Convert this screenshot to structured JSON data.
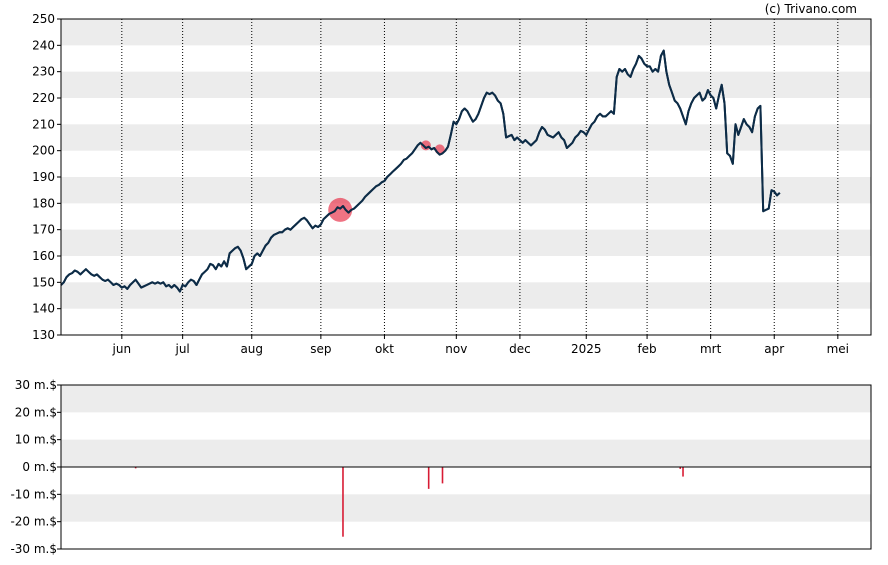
{
  "credit": "(c) Trivano.com",
  "colors": {
    "band": "#ececec",
    "line": "#0d2c47",
    "marker": "#e8384f",
    "volume": "#d81b34"
  },
  "chart_data": [
    {
      "type": "line",
      "name": "price",
      "grid": true,
      "ylim": [
        130,
        250
      ],
      "yticks": [
        "130",
        "140",
        "150",
        "160",
        "170",
        "180",
        "190",
        "200",
        "210",
        "220",
        "230",
        "240",
        "250"
      ],
      "month_labels": [
        "jun",
        "jul",
        "aug",
        "sep",
        "okt",
        "nov",
        "dec",
        "2025",
        "feb",
        "mrt",
        "apr",
        "mei"
      ],
      "month_ticks": [
        1,
        23,
        48,
        73,
        96,
        122,
        145,
        169,
        191,
        214,
        237,
        260
      ],
      "x_max": 272,
      "series": [
        {
          "points": [
            [
              -21,
              149
            ],
            [
              -20,
              150
            ],
            [
              -19,
              152
            ],
            [
              -18,
              153
            ],
            [
              -17,
              153.5
            ],
            [
              -16,
              154.5
            ],
            [
              -15,
              154
            ],
            [
              -14,
              153
            ],
            [
              -13,
              154
            ],
            [
              -12,
              155
            ],
            [
              -11,
              154
            ],
            [
              -10,
              153
            ],
            [
              -9,
              152.5
            ],
            [
              -8,
              153
            ],
            [
              -7,
              152
            ],
            [
              -6,
              151
            ],
            [
              -5,
              150.5
            ],
            [
              -4,
              151
            ],
            [
              -3,
              150
            ],
            [
              -2,
              149
            ],
            [
              -1,
              149.5
            ],
            [
              0,
              149
            ],
            [
              1,
              148
            ],
            [
              2,
              148.5
            ],
            [
              3,
              147.5
            ],
            [
              4,
              149
            ],
            [
              5,
              150
            ],
            [
              6,
              151
            ],
            [
              7,
              149.5
            ],
            [
              8,
              148
            ],
            [
              9,
              148.5
            ],
            [
              10,
              149
            ],
            [
              11,
              149.5
            ],
            [
              12,
              150
            ],
            [
              13,
              149.5
            ],
            [
              14,
              150
            ],
            [
              15,
              149.5
            ],
            [
              16,
              150
            ],
            [
              17,
              148.5
            ],
            [
              18,
              149
            ],
            [
              19,
              148
            ],
            [
              20,
              149
            ],
            [
              21,
              148
            ],
            [
              22,
              146.5
            ],
            [
              23,
              149
            ],
            [
              24,
              148.5
            ],
            [
              25,
              150
            ],
            [
              26,
              151
            ],
            [
              27,
              150.5
            ],
            [
              28,
              149
            ],
            [
              29,
              151
            ],
            [
              30,
              153
            ],
            [
              31,
              154
            ],
            [
              32,
              155
            ],
            [
              33,
              157
            ],
            [
              34,
              156.5
            ],
            [
              35,
              155
            ],
            [
              36,
              157
            ],
            [
              37,
              156
            ],
            [
              38,
              158
            ],
            [
              39,
              156
            ],
            [
              40,
              161
            ],
            [
              41,
              162
            ],
            [
              42,
              163
            ],
            [
              43,
              163.5
            ],
            [
              44,
              162
            ],
            [
              45,
              159
            ],
            [
              46,
              155
            ],
            [
              47,
              156
            ],
            [
              48,
              157
            ],
            [
              49,
              160
            ],
            [
              50,
              161
            ],
            [
              51,
              160
            ],
            [
              52,
              162
            ],
            [
              53,
              164
            ],
            [
              54,
              165
            ],
            [
              55,
              167
            ],
            [
              56,
              168
            ],
            [
              57,
              168.5
            ],
            [
              58,
              169
            ],
            [
              59,
              169
            ],
            [
              60,
              170
            ],
            [
              61,
              170.5
            ],
            [
              62,
              170
            ],
            [
              63,
              171
            ],
            [
              64,
              172
            ],
            [
              65,
              173
            ],
            [
              66,
              174
            ],
            [
              67,
              174.5
            ],
            [
              68,
              173.5
            ],
            [
              69,
              172
            ],
            [
              70,
              170.5
            ],
            [
              71,
              171.5
            ],
            [
              72,
              171
            ],
            [
              73,
              172
            ],
            [
              74,
              174
            ],
            [
              75,
              175
            ],
            [
              76,
              176
            ],
            [
              77,
              176.5
            ],
            [
              78,
              177
            ],
            [
              79,
              178.5
            ],
            [
              80,
              178
            ],
            [
              81,
              179
            ],
            [
              82,
              177.5
            ],
            [
              83,
              176.5
            ],
            [
              84,
              177.5
            ],
            [
              85,
              178
            ],
            [
              86,
              179
            ],
            [
              87,
              180
            ],
            [
              88,
              181
            ],
            [
              89,
              182.5
            ],
            [
              90,
              183.5
            ],
            [
              91,
              184.5
            ],
            [
              92,
              185.5
            ],
            [
              93,
              186.5
            ],
            [
              94,
              187
            ],
            [
              95,
              188
            ],
            [
              96,
              188.5
            ],
            [
              97,
              190
            ],
            [
              98,
              191
            ],
            [
              99,
              192
            ],
            [
              100,
              193
            ],
            [
              101,
              194
            ],
            [
              102,
              195
            ],
            [
              103,
              196.5
            ],
            [
              104,
              197
            ],
            [
              105,
              198
            ],
            [
              106,
              199
            ],
            [
              107,
              200.5
            ],
            [
              108,
              202
            ],
            [
              109,
              203
            ],
            [
              110,
              202
            ],
            [
              111,
              201
            ],
            [
              112,
              201.5
            ],
            [
              113,
              200.5
            ],
            [
              114,
              201
            ],
            [
              115,
              199.5
            ],
            [
              116,
              198.5
            ],
            [
              117,
              199
            ],
            [
              118,
              200
            ],
            [
              119,
              201.5
            ],
            [
              120,
              206
            ],
            [
              121,
              211
            ],
            [
              122,
              210
            ],
            [
              123,
              212
            ],
            [
              124,
              215
            ],
            [
              125,
              216
            ],
            [
              126,
              215
            ],
            [
              127,
              213
            ],
            [
              128,
              211
            ],
            [
              129,
              212
            ],
            [
              130,
              214
            ],
            [
              131,
              217
            ],
            [
              132,
              220
            ],
            [
              133,
              222
            ],
            [
              134,
              221.5
            ],
            [
              135,
              222
            ],
            [
              136,
              221
            ],
            [
              137,
              219
            ],
            [
              138,
              218
            ],
            [
              139,
              214
            ],
            [
              140,
              205
            ],
            [
              141,
              205.5
            ],
            [
              142,
              206
            ],
            [
              143,
              204
            ],
            [
              144,
              205
            ],
            [
              145,
              204
            ],
            [
              146,
              203
            ],
            [
              147,
              204
            ],
            [
              148,
              203
            ],
            [
              149,
              202
            ],
            [
              150,
              203
            ],
            [
              151,
              204
            ],
            [
              152,
              207
            ],
            [
              153,
              209
            ],
            [
              154,
              208
            ],
            [
              155,
              206
            ],
            [
              156,
              205.5
            ],
            [
              157,
              205
            ],
            [
              158,
              206
            ],
            [
              159,
              207
            ],
            [
              160,
              205
            ],
            [
              161,
              204
            ],
            [
              162,
              201
            ],
            [
              163,
              202
            ],
            [
              164,
              203
            ],
            [
              165,
              205
            ],
            [
              166,
              206
            ],
            [
              167,
              207.5
            ],
            [
              168,
              207
            ],
            [
              169,
              206
            ],
            [
              170,
              208
            ],
            [
              171,
              210
            ],
            [
              172,
              211
            ],
            [
              173,
              213
            ],
            [
              174,
              214
            ],
            [
              175,
              213
            ],
            [
              176,
              213
            ],
            [
              177,
              214
            ],
            [
              178,
              215
            ],
            [
              179,
              214
            ],
            [
              180,
              228
            ],
            [
              181,
              231
            ],
            [
              182,
              230
            ],
            [
              183,
              231
            ],
            [
              184,
              229
            ],
            [
              185,
              228
            ],
            [
              186,
              231
            ],
            [
              187,
              233
            ],
            [
              188,
              236
            ],
            [
              189,
              235
            ],
            [
              190,
              233
            ],
            [
              191,
              232
            ],
            [
              192,
              232
            ],
            [
              193,
              230
            ],
            [
              194,
              231
            ],
            [
              195,
              230
            ],
            [
              196,
              236
            ],
            [
              197,
              238
            ],
            [
              198,
              230
            ],
            [
              199,
              225
            ],
            [
              200,
              222
            ],
            [
              201,
              219
            ],
            [
              202,
              218
            ],
            [
              203,
              216
            ],
            [
              204,
              213
            ],
            [
              205,
              210
            ],
            [
              206,
              215
            ],
            [
              207,
              218
            ],
            [
              208,
              220
            ],
            [
              209,
              221
            ],
            [
              210,
              222
            ],
            [
              211,
              219
            ],
            [
              212,
              220
            ],
            [
              213,
              223
            ],
            [
              214,
              221
            ],
            [
              215,
              220
            ],
            [
              216,
              216
            ],
            [
              217,
              221
            ],
            [
              218,
              225
            ],
            [
              219,
              218
            ],
            [
              220,
              199
            ],
            [
              221,
              198
            ],
            [
              222,
              195
            ],
            [
              223,
              210
            ],
            [
              224,
              206
            ],
            [
              225,
              209
            ],
            [
              226,
              212
            ],
            [
              227,
              210
            ],
            [
              228,
              209
            ],
            [
              229,
              207
            ],
            [
              230,
              213
            ],
            [
              231,
              216
            ],
            [
              232,
              217
            ],
            [
              233,
              177
            ],
            [
              234,
              177.5
            ],
            [
              235,
              178
            ],
            [
              236,
              185
            ],
            [
              237,
              184.5
            ],
            [
              238,
              183
            ],
            [
              239,
              184
            ]
          ]
        }
      ],
      "markers": [
        {
          "x": 80,
          "y": 177.5,
          "size": "large"
        },
        {
          "x": 111,
          "y": 202,
          "size": "small"
        },
        {
          "x": 116,
          "y": 200.5,
          "size": "small"
        }
      ]
    },
    {
      "type": "bar",
      "name": "volume",
      "grid": true,
      "ylim": [
        -30,
        30
      ],
      "yticks": [
        "30 m.$",
        "20 m.$",
        "10 m.$",
        "0 m.$",
        "-10 m.$",
        "-20 m.$",
        "-30 m.$"
      ],
      "x_max": 272,
      "bars": [
        {
          "x": 6,
          "value": -0.5
        },
        {
          "x": 81,
          "value": -25.5
        },
        {
          "x": 112,
          "value": -8
        },
        {
          "x": 117,
          "value": -6
        },
        {
          "x": 203,
          "value": -0.7
        },
        {
          "x": 204,
          "value": -3.5
        }
      ]
    }
  ]
}
